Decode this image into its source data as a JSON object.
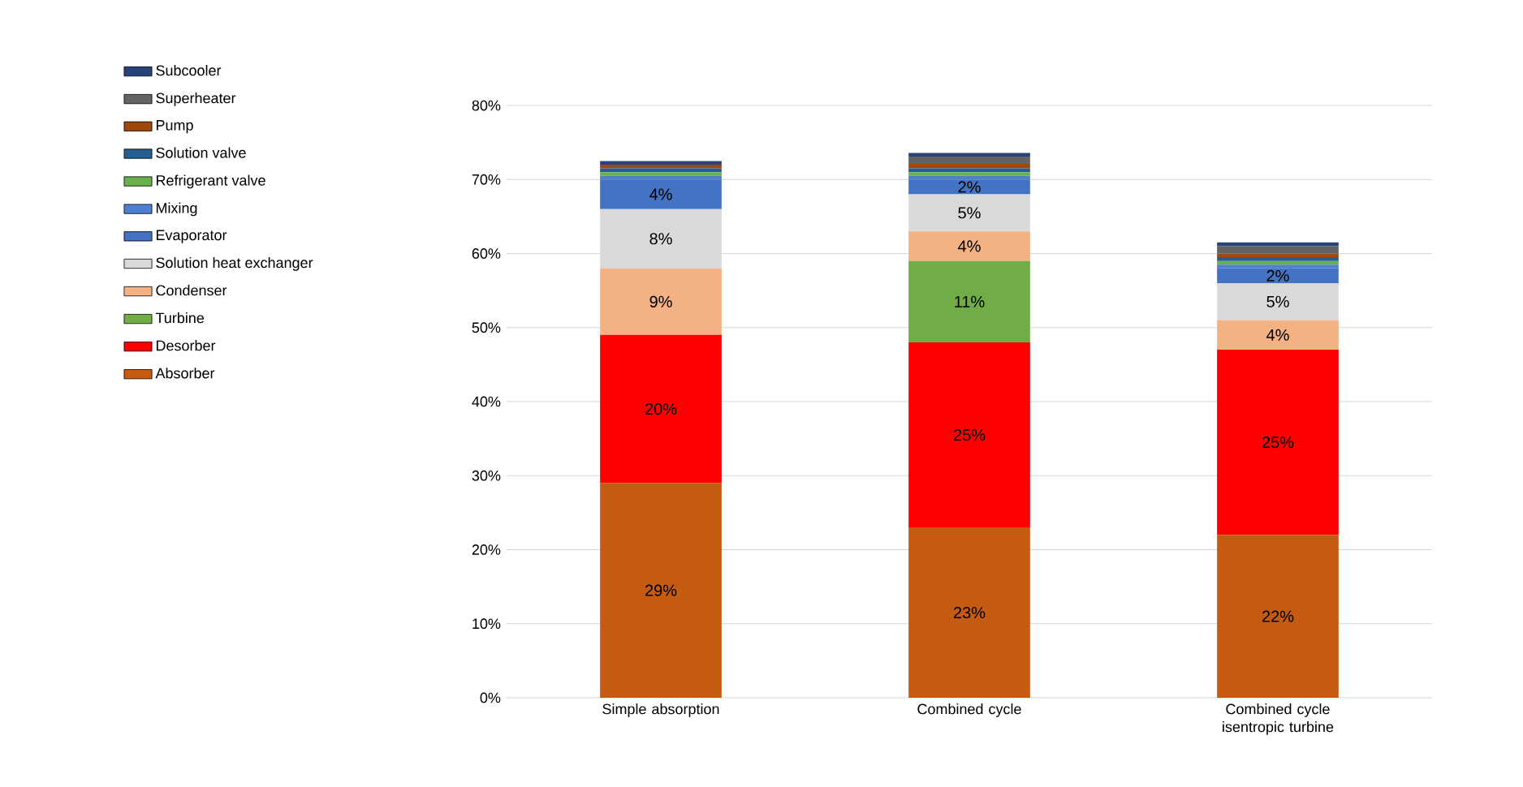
{
  "chart_data": {
    "type": "bar",
    "stacked": true,
    "categories": [
      "Simple absorption",
      "Combined cycle",
      "Combined cycle isentropic turbine"
    ],
    "series": [
      {
        "name": "Absorber",
        "color": "#c55a11",
        "values": [
          29,
          23,
          22
        ],
        "value_labels": [
          "29%",
          "23%",
          "22%"
        ]
      },
      {
        "name": "Desorber",
        "color": "#ff0000",
        "values": [
          20,
          25,
          25
        ],
        "value_labels": [
          "20%",
          "25%",
          "25%"
        ]
      },
      {
        "name": "Turbine",
        "color": "#70ad47",
        "values": [
          null,
          11,
          null
        ],
        "value_labels": [
          null,
          "11%",
          null
        ]
      },
      {
        "name": "Condenser",
        "color": "#f4b183",
        "values": [
          9,
          4,
          4
        ],
        "value_labels": [
          "9%",
          "4%",
          "4%"
        ]
      },
      {
        "name": "Solution heat exchanger",
        "color": "#d9d9d9",
        "values": [
          8,
          5,
          5
        ],
        "value_labels": [
          "8%",
          "5%",
          "5%"
        ]
      },
      {
        "name": "Evaporator",
        "color": "#4472c4",
        "values": [
          4,
          2,
          2
        ],
        "value_labels": [
          "4%",
          "2%",
          "2%"
        ]
      },
      {
        "name": "Mixing",
        "color": "#4f7fd0",
        "values": [
          0.5,
          0.5,
          0.5
        ]
      },
      {
        "name": "Refrigerant valve",
        "color": "#6ab04c",
        "values": [
          0.5,
          0.5,
          0.5
        ]
      },
      {
        "name": "Solution valve",
        "color": "#255e91",
        "values": [
          0.5,
          0.5,
          0.5
        ]
      },
      {
        "name": "Pump",
        "color": "#9e480e",
        "values": [
          0.5,
          0.6,
          0.5
        ]
      },
      {
        "name": "Superheater",
        "color": "#636363",
        "values": [
          0,
          1.0,
          1.0
        ]
      },
      {
        "name": "Subcooler",
        "color": "#264478",
        "values": [
          0.5,
          0.5,
          0.5
        ]
      }
    ],
    "ylim": [
      0,
      80
    ],
    "yticks": [
      {
        "value": 0,
        "label": "0%"
      },
      {
        "value": 10,
        "label": "10%"
      },
      {
        "value": 20,
        "label": "20%"
      },
      {
        "value": 30,
        "label": "30%"
      },
      {
        "value": 40,
        "label": "40%"
      },
      {
        "value": 50,
        "label": "50%"
      },
      {
        "value": 60,
        "label": "60%"
      },
      {
        "value": 70,
        "label": "70%"
      },
      {
        "value": 80,
        "label": "80%"
      }
    ],
    "grid": "y",
    "legend": "left"
  }
}
